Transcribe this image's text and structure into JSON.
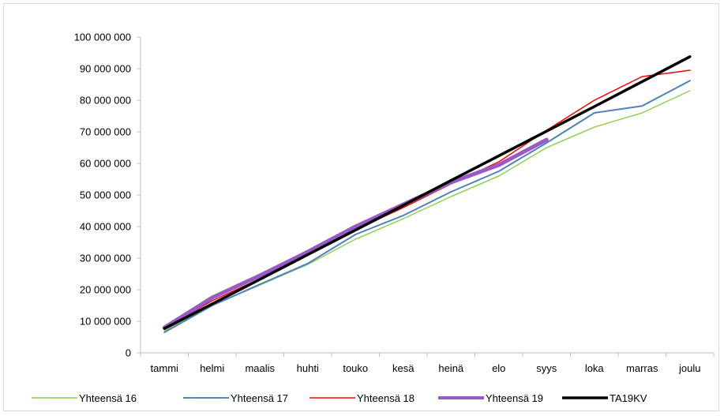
{
  "chart_data": {
    "type": "line",
    "categories": [
      "tammi",
      "helmi",
      "maalis",
      "huhti",
      "touko",
      "kesä",
      "heinä",
      "elo",
      "syys",
      "loka",
      "marras",
      "joulu"
    ],
    "y_ticks": [
      "0",
      "10 000 000",
      "20 000 000",
      "30 000 000",
      "40 000 000",
      "50 000 000",
      "60 000 000",
      "70 000 000",
      "80 000 000",
      "90 000 000",
      "100 000 000"
    ],
    "ylim": [
      0,
      100000000
    ],
    "grid": false,
    "legend_position": "bottom",
    "series": [
      {
        "name": "Yhteensä 16",
        "color": "#92d050",
        "width": 1.5,
        "values": [
          7000000,
          15200000,
          21500000,
          28000000,
          36000000,
          42500000,
          49500000,
          56000000,
          65000000,
          71500000,
          76000000,
          83000000
        ]
      },
      {
        "name": "Yhteensä 17",
        "color": "#4f81bd",
        "width": 2,
        "values": [
          6500000,
          15000000,
          21700000,
          28300000,
          37500000,
          43500000,
          51000000,
          57500000,
          66500000,
          76000000,
          78200000,
          86200000
        ]
      },
      {
        "name": "Yhteensä 18",
        "color": "#ff0000",
        "width": 1.5,
        "values": [
          8000000,
          16500000,
          23500000,
          31000000,
          39000000,
          46000000,
          53500000,
          60500000,
          70500000,
          80000000,
          87500000,
          89500000
        ]
      },
      {
        "name": "Yhteensä 19",
        "color": "#9b59c6",
        "width": 5,
        "values": [
          8000000,
          17500000,
          24500000,
          32000000,
          40000000,
          47000000,
          54000000,
          59500000,
          67500000,
          null,
          null,
          null
        ]
      },
      {
        "name": "TA19KV",
        "color": "#000000",
        "width": 3.5,
        "values": [
          7700000,
          15500000,
          23300000,
          31100000,
          38900000,
          46700000,
          54600000,
          62400000,
          70200000,
          78000000,
          85900000,
          93800000
        ]
      }
    ]
  }
}
